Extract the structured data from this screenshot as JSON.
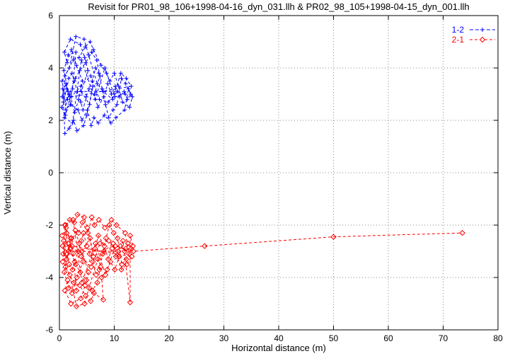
{
  "title": "Revisit for PR01_98_106+1998-04-16_dyn_031.llh & PR02_98_105+1998-04-15_dyn_001.llh",
  "colors": {
    "series1": "#0000ff",
    "series2": "#ff0000",
    "grid": "#8a8a8a",
    "axis": "#000000",
    "background": "#ffffff"
  },
  "chart_data": {
    "type": "scatter",
    "title": "Revisit for PR01_98_106+1998-04-16_dyn_031.llh & PR02_98_105+1998-04-15_dyn_001.llh",
    "xlabel": "Horizontal distance (m)",
    "ylabel": "Vertical distance (m)",
    "xlim": [
      0,
      80
    ],
    "ylim": [
      -6,
      6
    ],
    "xticks": [
      0,
      10,
      20,
      30,
      40,
      50,
      60,
      70,
      80
    ],
    "yticks": [
      -6,
      -4,
      -2,
      0,
      2,
      4,
      6
    ],
    "grid": true,
    "legend_position": "top-right",
    "series": [
      {
        "name": "1-2",
        "color": "#0000ff",
        "marker": "plus",
        "line": "dashed",
        "points": [
          [
            0.5,
            2.9
          ],
          [
            1.2,
            3.4
          ],
          [
            2.1,
            2.6
          ],
          [
            0.8,
            3.9
          ],
          [
            1.6,
            4.5
          ],
          [
            3.0,
            4.6
          ],
          [
            2.4,
            3.2
          ],
          [
            1.1,
            2.2
          ],
          [
            0.4,
            2.5
          ],
          [
            1.9,
            3.0
          ],
          [
            2.8,
            2.3
          ],
          [
            3.5,
            2.8
          ],
          [
            4.2,
            3.5
          ],
          [
            3.1,
            4.1
          ],
          [
            2.2,
            4.7
          ],
          [
            1.4,
            4.2
          ],
          [
            0.9,
            4.6
          ],
          [
            2.0,
            5.1
          ],
          [
            3.8,
            4.9
          ],
          [
            4.6,
            4.4
          ],
          [
            5.2,
            3.9
          ],
          [
            4.0,
            3.1
          ],
          [
            5.5,
            2.6
          ],
          [
            6.1,
            3.3
          ],
          [
            5.0,
            2.2
          ],
          [
            4.4,
            1.8
          ],
          [
            3.2,
            1.6
          ],
          [
            2.6,
            2.0
          ],
          [
            1.8,
            1.7
          ],
          [
            1.0,
            1.5
          ],
          [
            0.6,
            3.2
          ],
          [
            1.5,
            2.8
          ],
          [
            2.9,
            3.6
          ],
          [
            3.7,
            3.9
          ],
          [
            4.8,
            4.2
          ],
          [
            5.9,
            4.6
          ],
          [
            6.8,
            4.3
          ],
          [
            7.4,
            3.7
          ],
          [
            6.4,
            3.0
          ],
          [
            7.0,
            2.5
          ],
          [
            8.1,
            2.9
          ],
          [
            8.8,
            3.4
          ],
          [
            9.5,
            3.0
          ],
          [
            10.2,
            3.3
          ],
          [
            11.0,
            2.9
          ],
          [
            11.8,
            3.1
          ],
          [
            12.4,
            2.8
          ],
          [
            13.0,
            3.0
          ],
          [
            12.1,
            3.4
          ],
          [
            11.3,
            3.6
          ],
          [
            10.5,
            2.6
          ],
          [
            9.8,
            2.4
          ],
          [
            9.0,
            2.1
          ],
          [
            8.4,
            2.6
          ],
          [
            7.8,
            3.2
          ],
          [
            7.2,
            3.8
          ],
          [
            6.6,
            4.0
          ],
          [
            6.0,
            3.5
          ],
          [
            5.4,
            3.2
          ],
          [
            4.9,
            2.9
          ],
          [
            4.3,
            2.4
          ],
          [
            3.9,
            2.7
          ],
          [
            3.3,
            3.1
          ],
          [
            2.7,
            3.5
          ],
          [
            2.3,
            3.8
          ],
          [
            1.7,
            3.6
          ],
          [
            1.3,
            3.2
          ],
          [
            0.7,
            2.7
          ],
          [
            1.0,
            3.7
          ],
          [
            2.5,
            4.3
          ],
          [
            3.6,
            4.4
          ],
          [
            4.7,
            4.8
          ],
          [
            5.6,
            5.0
          ],
          [
            6.2,
            4.7
          ],
          [
            7.6,
            4.1
          ],
          [
            8.6,
            3.8
          ],
          [
            9.2,
            3.5
          ],
          [
            10.0,
            3.8
          ],
          [
            10.8,
            3.3
          ],
          [
            11.5,
            2.7
          ],
          [
            12.8,
            2.5
          ],
          [
            13.3,
            2.9
          ],
          [
            12.6,
            3.2
          ],
          [
            11.9,
            2.4
          ],
          [
            10.3,
            2.1
          ],
          [
            9.4,
            1.9
          ],
          [
            8.2,
            2.2
          ],
          [
            7.1,
            1.9
          ],
          [
            6.3,
            2.1
          ],
          [
            5.8,
            1.8
          ],
          [
            5.1,
            2.4
          ],
          [
            4.1,
            2.0
          ],
          [
            3.4,
            2.4
          ],
          [
            2.0,
            2.6
          ],
          [
            1.2,
            2.4
          ],
          [
            0.5,
            3.5
          ],
          [
            1.8,
            4.0
          ],
          [
            3.0,
            5.2
          ],
          [
            4.5,
            5.1
          ],
          [
            5.3,
            4.5
          ],
          [
            6.9,
            3.4
          ],
          [
            8.0,
            3.1
          ],
          [
            9.7,
            2.8
          ],
          [
            11.2,
            3.8
          ],
          [
            12.2,
            3.6
          ],
          [
            13.1,
            3.3
          ],
          [
            2.2,
            2.9
          ],
          [
            3.9,
            3.3
          ],
          [
            5.7,
            3.7
          ],
          [
            7.3,
            2.8
          ],
          [
            8.9,
            2.7
          ],
          [
            10.6,
            3.1
          ],
          [
            1.6,
            3.1
          ],
          [
            0.9,
            2.1
          ],
          [
            2.4,
            1.9
          ],
          [
            4.0,
            4.3
          ],
          [
            6.5,
            2.8
          ],
          [
            8.3,
            4.0
          ],
          [
            10.1,
            2.9
          ],
          [
            12.0,
            3.0
          ]
        ]
      },
      {
        "name": "2-1",
        "color": "#ff0000",
        "marker": "diamond",
        "line": "dashed",
        "points": [
          [
            0.6,
            -2.8
          ],
          [
            1.3,
            -3.3
          ],
          [
            2.2,
            -2.5
          ],
          [
            0.9,
            -3.8
          ],
          [
            1.7,
            -4.4
          ],
          [
            3.1,
            -4.5
          ],
          [
            2.5,
            -3.1
          ],
          [
            1.2,
            -2.1
          ],
          [
            0.5,
            -2.4
          ],
          [
            2.0,
            -2.9
          ],
          [
            2.9,
            -2.2
          ],
          [
            3.6,
            -2.7
          ],
          [
            4.3,
            -3.4
          ],
          [
            3.2,
            -4.0
          ],
          [
            2.3,
            -4.6
          ],
          [
            1.5,
            -4.1
          ],
          [
            1.0,
            -4.5
          ],
          [
            2.1,
            -5.0
          ],
          [
            3.9,
            -4.8
          ],
          [
            4.7,
            -4.3
          ],
          [
            5.3,
            -3.8
          ],
          [
            4.1,
            -3.0
          ],
          [
            5.6,
            -2.5
          ],
          [
            6.2,
            -3.2
          ],
          [
            5.1,
            -2.1
          ],
          [
            4.5,
            -1.7
          ],
          [
            3.3,
            -1.6
          ],
          [
            2.7,
            -1.9
          ],
          [
            1.9,
            -1.8
          ],
          [
            1.1,
            -2.0
          ],
          [
            0.7,
            -3.1
          ],
          [
            1.6,
            -2.7
          ],
          [
            3.0,
            -3.5
          ],
          [
            3.8,
            -3.8
          ],
          [
            4.9,
            -4.1
          ],
          [
            6.0,
            -4.5
          ],
          [
            6.9,
            -4.2
          ],
          [
            7.5,
            -3.6
          ],
          [
            6.5,
            -2.9
          ],
          [
            7.1,
            -2.4
          ],
          [
            8.2,
            -2.8
          ],
          [
            8.9,
            -3.3
          ],
          [
            9.6,
            -2.9
          ],
          [
            10.3,
            -3.2
          ],
          [
            11.1,
            -2.8
          ],
          [
            11.9,
            -3.0
          ],
          [
            12.5,
            -2.7
          ],
          [
            13.1,
            -2.9
          ],
          [
            12.2,
            -3.3
          ],
          [
            11.4,
            -3.5
          ],
          [
            10.6,
            -2.5
          ],
          [
            9.9,
            -2.3
          ],
          [
            9.1,
            -2.0
          ],
          [
            8.5,
            -2.5
          ],
          [
            7.9,
            -3.1
          ],
          [
            7.3,
            -3.7
          ],
          [
            6.7,
            -3.9
          ],
          [
            6.1,
            -3.4
          ],
          [
            5.5,
            -3.1
          ],
          [
            5.0,
            -2.8
          ],
          [
            4.4,
            -2.3
          ],
          [
            4.0,
            -2.6
          ],
          [
            3.4,
            -3.0
          ],
          [
            2.8,
            -3.4
          ],
          [
            2.4,
            -3.7
          ],
          [
            1.8,
            -3.5
          ],
          [
            1.4,
            -3.1
          ],
          [
            0.8,
            -2.6
          ],
          [
            1.1,
            -3.6
          ],
          [
            2.6,
            -4.2
          ],
          [
            3.7,
            -4.3
          ],
          [
            4.8,
            -4.7
          ],
          [
            5.7,
            -4.9
          ],
          [
            6.3,
            -4.6
          ],
          [
            8.0,
            -4.85
          ],
          [
            7.7,
            -4.0
          ],
          [
            8.7,
            -3.7
          ],
          [
            9.3,
            -3.4
          ],
          [
            10.1,
            -3.7
          ],
          [
            10.9,
            -3.2
          ],
          [
            11.6,
            -2.6
          ],
          [
            12.9,
            -4.95
          ],
          [
            12.9,
            -2.4
          ],
          [
            13.4,
            -2.8
          ],
          [
            12.7,
            -3.1
          ],
          [
            12.0,
            -2.3
          ],
          [
            10.4,
            -2.0
          ],
          [
            9.5,
            -1.8
          ],
          [
            8.3,
            -2.1
          ],
          [
            7.2,
            -1.8
          ],
          [
            6.4,
            -2.0
          ],
          [
            5.9,
            -1.7
          ],
          [
            5.2,
            -2.3
          ],
          [
            4.2,
            -1.9
          ],
          [
            3.5,
            -2.3
          ],
          [
            2.1,
            -2.5
          ],
          [
            1.3,
            -2.3
          ],
          [
            0.6,
            -3.4
          ],
          [
            1.9,
            -3.9
          ],
          [
            3.1,
            -5.1
          ],
          [
            4.6,
            -5.0
          ],
          [
            5.4,
            -4.4
          ],
          [
            7.0,
            -3.3
          ],
          [
            8.1,
            -3.0
          ],
          [
            9.8,
            -2.7
          ],
          [
            11.3,
            -3.7
          ],
          [
            12.3,
            -3.5
          ],
          [
            13.2,
            -3.2
          ],
          [
            2.3,
            -2.8
          ],
          [
            4.0,
            -3.2
          ],
          [
            5.8,
            -3.6
          ],
          [
            7.4,
            -2.7
          ],
          [
            9.0,
            -2.6
          ],
          [
            10.7,
            -3.0
          ],
          [
            1.7,
            -3.0
          ],
          [
            1.0,
            -2.0
          ],
          [
            2.5,
            -1.8
          ],
          [
            4.1,
            -4.2
          ],
          [
            6.6,
            -2.7
          ],
          [
            8.4,
            -3.9
          ],
          [
            10.2,
            -2.8
          ],
          [
            12.1,
            -2.9
          ],
          [
            13.5,
            -3.0
          ],
          [
            26.5,
            -2.8
          ],
          [
            50.0,
            -2.45
          ],
          [
            73.5,
            -2.3
          ]
        ]
      }
    ]
  }
}
